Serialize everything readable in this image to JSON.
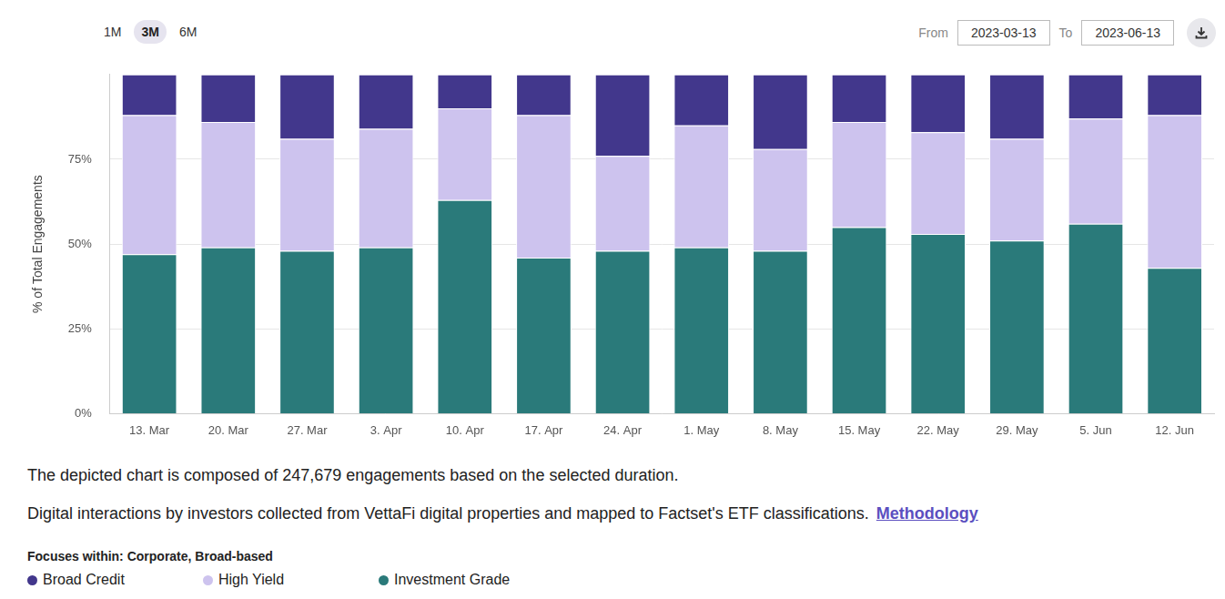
{
  "chart_data": {
    "type": "bar",
    "stacked": true,
    "grid": true,
    "y_label": "% of Total Engagements",
    "categories": [
      "13. Mar",
      "20. Mar",
      "27. Mar",
      "3. Apr",
      "10. Apr",
      "17. Apr",
      "24. Apr",
      "1. May",
      "8. May",
      "15. May",
      "22. May",
      "29. May",
      "5. Jun",
      "12. Jun"
    ],
    "series": [
      {
        "name": "Broad Credit",
        "color": "#42378c",
        "values": [
          12,
          14,
          19,
          16,
          10,
          12,
          24,
          15,
          22,
          14,
          17,
          19,
          13,
          12
        ]
      },
      {
        "name": "High Yield",
        "color": "#cdc3ee",
        "values": [
          41,
          37,
          33,
          35,
          27,
          42,
          28,
          36,
          30,
          31,
          30,
          30,
          31,
          45
        ]
      },
      {
        "name": "Investment Grade",
        "color": "#2a7a7a",
        "values": [
          47,
          49,
          48,
          49,
          63,
          46,
          48,
          49,
          48,
          55,
          53,
          51,
          56,
          43
        ]
      }
    ],
    "ylim": [
      0,
      100
    ],
    "yticks": [
      {
        "value": 0,
        "label": "0%"
      },
      {
        "value": 25,
        "label": "25%"
      },
      {
        "value": 50,
        "label": "50%"
      },
      {
        "value": 75,
        "label": "75%"
      }
    ],
    "legend_title": "Focuses within: Corporate, Broad-based",
    "range_buttons": [
      "1M",
      "3M",
      "6M"
    ],
    "active_range": "3M",
    "from_label": "From",
    "from_date": "2023-03-13",
    "to_label": "To",
    "to_date": "2023-06-13",
    "notes": [
      "The depicted chart is composed of 247,679 engagements based on the selected duration.",
      "Digital interactions by investors collected from VettaFi digital properties and mapped to Factset's ETF classifications."
    ],
    "link": "Methodology"
  }
}
